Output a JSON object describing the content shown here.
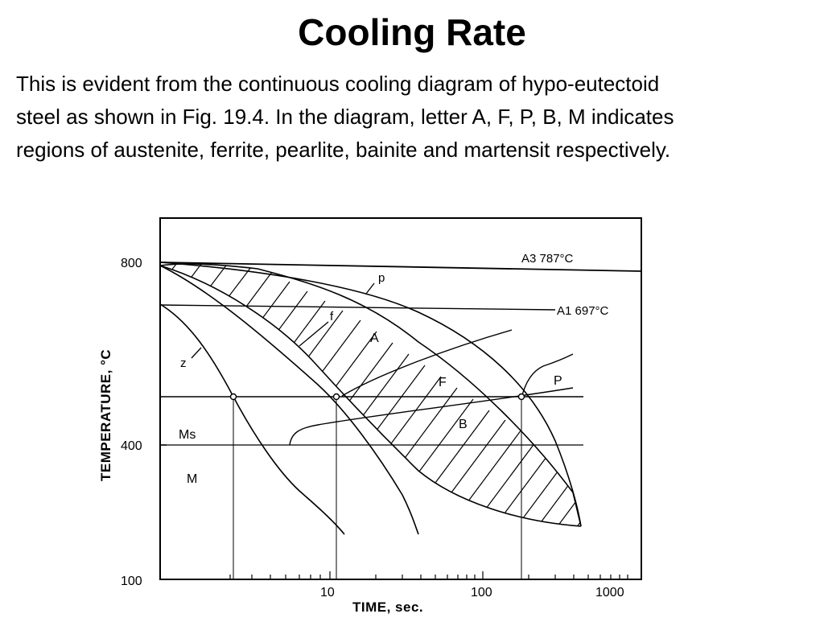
{
  "slide": {
    "title": "Cooling Rate",
    "body_lines": [
      "This is evident from the continuous cooling diagram of hypo-eutectoid",
      "steel as shown in Fig. 19.4. In the diagram, letter A, F, P, B, M indicates",
      "regions of austenite, ferrite, pearlite, bainite and martensit respectively."
    ]
  },
  "diagram": {
    "y_axis_title": "TEMPERATURE, °C",
    "x_axis_title": "TIME, sec.",
    "y_ticks": [
      "800",
      "400",
      "100"
    ],
    "x_ticks": [
      "10",
      "100",
      "1000"
    ],
    "lines": {
      "a3": "A3 787°C",
      "a1": "A1 697°C"
    },
    "regions": {
      "austenite": "A",
      "ferrite": "F",
      "pearlite": "P",
      "bainite": "B",
      "ms": "Ms",
      "martensite": "M"
    },
    "curve_labels": {
      "z": "z",
      "f": "f",
      "p": "p"
    },
    "x_scale": "log"
  }
}
